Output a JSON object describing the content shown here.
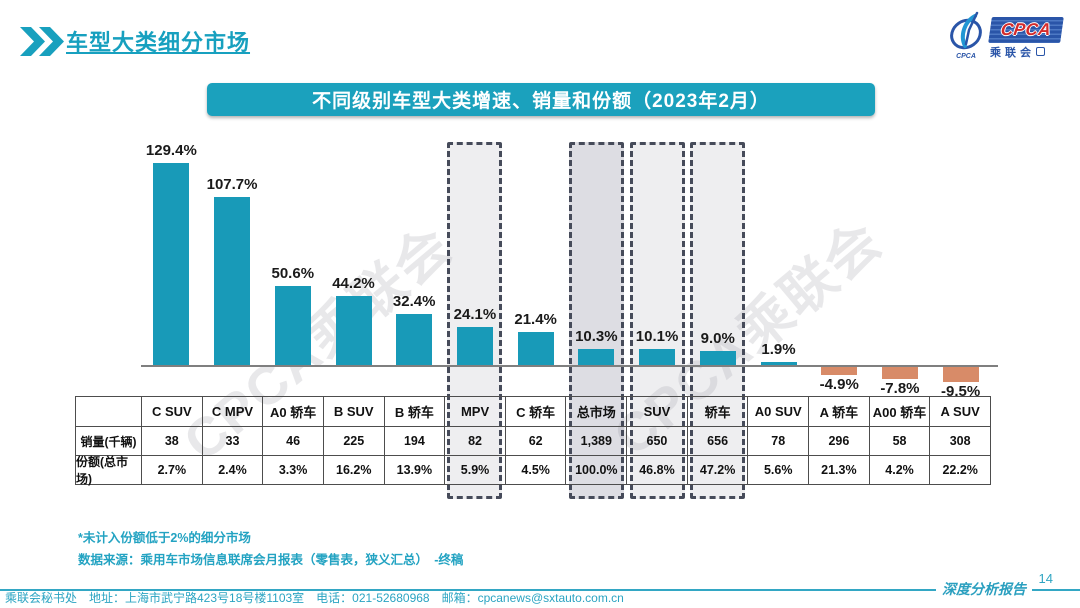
{
  "header": {
    "title": "车型大类细分市场",
    "logo": {
      "brand": "CPCA",
      "brand_cn": "乘联会",
      "brand_sub": "CPCA"
    }
  },
  "banner": {
    "title": "不同级别车型大类增速、销量和份额（2023年2月）"
  },
  "chart_data": {
    "type": "bar",
    "title": "不同级别车型大类增速、销量和份额（2023年2月）",
    "categories": [
      "C SUV",
      "C MPV",
      "A0 轿车",
      "B SUV",
      "B 轿车",
      "MPV",
      "C 轿车",
      "总市场",
      "SUV",
      "轿车",
      "A0 SUV",
      "A 轿车",
      "A00 轿车",
      "A SUV"
    ],
    "series": [
      {
        "name": "增速",
        "unit": "%",
        "values": [
          129.4,
          107.7,
          50.6,
          44.2,
          32.4,
          24.1,
          21.4,
          10.3,
          10.1,
          9.0,
          1.9,
          -4.9,
          -7.8,
          -9.5
        ]
      },
      {
        "name": "销量(千辆)",
        "values": [
          "38",
          "33",
          "46",
          "225",
          "194",
          "82",
          "62",
          "1,389",
          "650",
          "656",
          "78",
          "296",
          "58",
          "308"
        ]
      },
      {
        "name": "份额(总市场)",
        "values": [
          "2.7%",
          "2.4%",
          "3.3%",
          "16.2%",
          "13.9%",
          "5.9%",
          "4.5%",
          "100.0%",
          "46.8%",
          "47.2%",
          "5.6%",
          "21.3%",
          "4.2%",
          "22.2%"
        ]
      }
    ],
    "labels": [
      "129.4%",
      "107.7%",
      "50.6%",
      "44.2%",
      "32.4%",
      "24.1%",
      "21.4%",
      "10.3%",
      "10.1%",
      "9.0%",
      "1.9%",
      "-4.9%",
      "-7.8%",
      "-9.5%"
    ],
    "highlighted_categories": [
      "MPV",
      "总市场",
      "SUV",
      "轿车"
    ],
    "highlight_indexes": [
      5,
      7,
      8,
      9
    ],
    "colors": {
      "positive": "#189ab8",
      "negative": "#d88b68"
    },
    "ylim": [
      -15,
      140
    ],
    "grid": false,
    "legend": "none"
  },
  "table": {
    "row_labels": [
      "销量(千辆)",
      "份额(总市场)"
    ]
  },
  "watermark": {
    "text": "CPCA乘联会"
  },
  "footnotes": [
    "*未计入份额低于2%的细分市场",
    "数据来源：乘用车市场信息联席会月报表（零售表，狭义汇总）　-终稿"
  ],
  "footer": {
    "left": "乘联会秘书处　地址：上海市武宁路423号18号楼1103室　电话：021-52680968　邮箱：cpcanews@sxtauto.com.cn",
    "report_label": "深度分析报告",
    "page_number": "14"
  }
}
